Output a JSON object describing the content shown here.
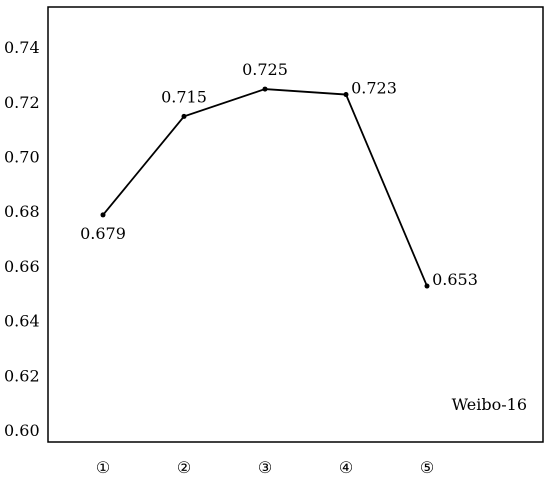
{
  "chart_data": {
    "type": "line",
    "title": "",
    "xlabel": "",
    "ylabel": "",
    "categories": [
      "①",
      "②",
      "③",
      "④",
      "⑤"
    ],
    "series": [
      {
        "name": "Weibo-16",
        "values": [
          0.679,
          0.715,
          0.725,
          0.723,
          0.653
        ],
        "labels": [
          "0.679",
          "0.715",
          "0.725",
          "0.723",
          "0.653"
        ]
      }
    ],
    "ylim": [
      0.596,
      0.755
    ],
    "yticks": [
      "0.74",
      "0.72",
      "0.70",
      "0.68",
      "0.66",
      "0.64",
      "0.62",
      "0.60"
    ],
    "grid": false,
    "legend_position": "bottom-right",
    "line_color": "#000000"
  }
}
